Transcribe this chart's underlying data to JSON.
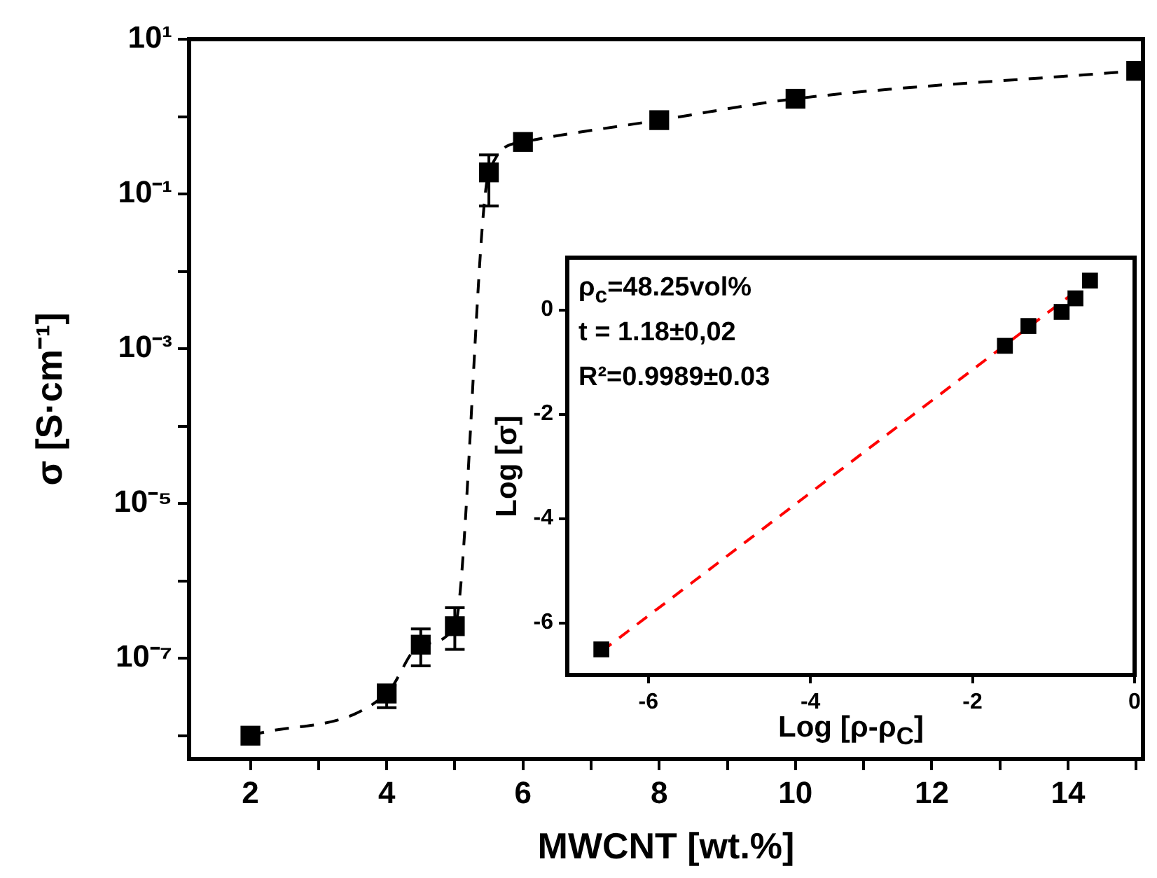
{
  "chart_data": [
    {
      "type": "line",
      "xlabel": "MWCNT [wt.%]",
      "ylabel": "σ [S·cm⁻¹]",
      "log": "y",
      "grid": false,
      "legend": false,
      "marker": "square",
      "line_style": "dashed",
      "x": [
        2,
        4,
        4.5,
        5,
        5.5,
        6,
        8,
        10,
        15
      ],
      "series": [
        {
          "color": "#000000",
          "values": [
            1e-08,
            3.5e-08,
            1.5e-07,
            2.6e-07,
            0.19,
            0.47,
            0.9,
            1.7,
            3.9
          ],
          "errors": [
            null,
            [
              2.3e-08,
              4.5e-08
            ],
            [
              8e-08,
              2.4e-07
            ],
            [
              1.3e-07,
              4.5e-07
            ],
            [
              0.07,
              0.32
            ],
            null,
            null,
            null,
            null
          ]
        }
      ],
      "xlim": [
        1.1,
        15.1
      ],
      "xticks": [
        2,
        {
          "value": 3,
          "label": null
        },
        4,
        {
          "value": 5,
          "label": null
        },
        6,
        {
          "value": 7,
          "label": null
        },
        8,
        {
          "value": 9,
          "label": null
        },
        10,
        {
          "value": 11,
          "label": null
        },
        12,
        {
          "value": 13,
          "label": null
        },
        14,
        {
          "value": 15,
          "label": null
        }
      ],
      "ylim": [
        5e-09,
        10
      ],
      "yticks": [
        {
          "value": 10,
          "label": "10¹"
        },
        {
          "value": 1,
          "label": null
        },
        {
          "value": 0.1,
          "label": "10⁻¹"
        },
        {
          "value": 0.01,
          "label": null
        },
        {
          "value": 0.001,
          "label": "10⁻³"
        },
        {
          "value": 0.0001,
          "label": null
        },
        {
          "value": 1e-05,
          "label": "10⁻⁵"
        },
        {
          "value": 1e-06,
          "label": null
        },
        {
          "value": 1e-07,
          "label": "10⁻⁷"
        },
        {
          "value": 1e-08,
          "label": null
        }
      ]
    },
    {
      "type": "scatter",
      "xlabel": "Log [ρ-ρ$_{C}$]",
      "ylabel": "Log [σ]",
      "grid": false,
      "legend": false,
      "marker": "square",
      "annotations": [
        "ρ$_{c}$=48.25vol%",
        "t = 1.18±0,02",
        "R²=0.9989±0.03"
      ],
      "series": [
        {
          "type": "scatter",
          "color": "#000000",
          "x": [
            -6.58,
            -1.6,
            -1.31,
            -0.9,
            -0.73,
            -0.55
          ],
          "values": [
            -6.51,
            -0.69,
            -0.31,
            -0.04,
            0.22,
            0.56
          ]
        },
        {
          "type": "line",
          "color": "#ff0000",
          "marker": "none",
          "line_style": "dashed",
          "x": [
            -6.58,
            -0.5
          ],
          "values": [
            -6.55,
            0.62
          ]
        }
      ],
      "xlim": [
        -7,
        0
      ],
      "xticks": [
        -6,
        -4,
        -2,
        0
      ],
      "ylim": [
        -7,
        1
      ],
      "yticks": [
        -6,
        -4,
        -2,
        0
      ]
    }
  ]
}
